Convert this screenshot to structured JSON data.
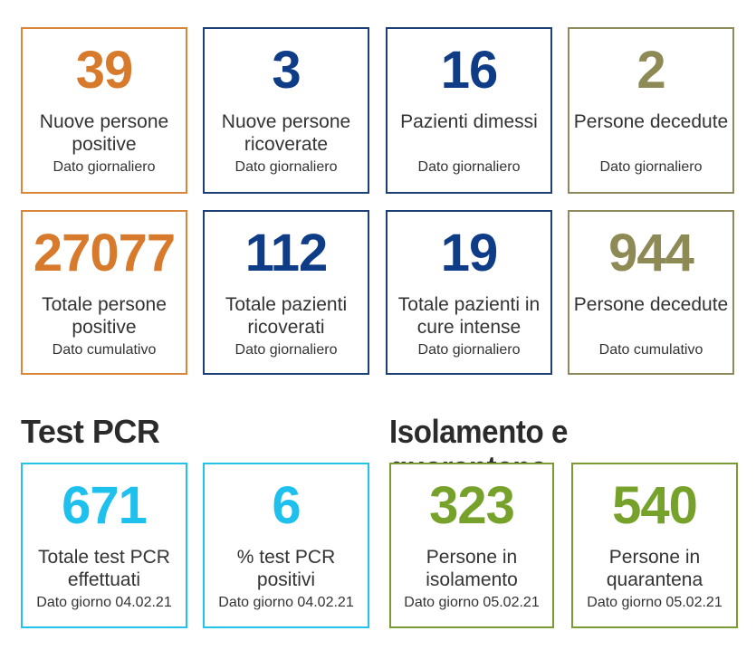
{
  "row1": [
    {
      "value": "39",
      "label": "Nuove persone positive",
      "sub": "Dato giornaliero",
      "color": "#d77a2c"
    },
    {
      "value": "3",
      "label": "Nuove persone ricoverate",
      "sub": "Dato giornaliero",
      "color": "#0f3c87"
    },
    {
      "value": "16",
      "label": "Pazienti dimessi",
      "sub": "Dato giornaliero",
      "color": "#0f3c87"
    },
    {
      "value": "2",
      "label": "Persone decedute",
      "sub": "Dato giornaliero",
      "color": "#8d8a55"
    }
  ],
  "row2": [
    {
      "value": "27077",
      "label": "Totale persone positive",
      "sub": "Dato cumulativo",
      "color": "#d77a2c"
    },
    {
      "value": "112",
      "label": "Totale pazienti ricoverati",
      "sub": "Dato giornaliero",
      "color": "#0f3c87"
    },
    {
      "value": "19",
      "label": "Totale pazienti in cure intense",
      "sub": "Dato giornaliero",
      "color": "#0f3c87"
    },
    {
      "value": "944",
      "label": "Persone decedute",
      "sub": "Dato cumulativo",
      "color": "#8d8a55"
    }
  ],
  "sections": {
    "pcr_title": "Test PCR",
    "isolation_title": "Isolamento e quarantena"
  },
  "row3": [
    {
      "value": "671",
      "label": "Totale test PCR effettuati",
      "sub": "Dato giorno 04.02.21",
      "color": "#1ec0ee"
    },
    {
      "value": "6",
      "label": "% test PCR positivi",
      "sub": "Dato giorno 04.02.21",
      "color": "#1ec0ee"
    },
    {
      "value": "323",
      "label": "Persone in isolamento",
      "sub": "Dato giorno 05.02.21",
      "color": "#76a12b"
    },
    {
      "value": "540",
      "label": "Persone in quarantena",
      "sub": "Dato giorno 05.02.21",
      "color": "#76a12b"
    }
  ]
}
